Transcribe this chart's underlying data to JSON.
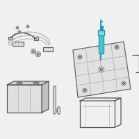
{
  "bg": "#f0f0f0",
  "white": "#ffffff",
  "lc": "#aaaaaa",
  "dc": "#777777",
  "vdc": "#555555",
  "teal": "#4dc4cc",
  "teal_dark": "#2a9aaa",
  "teal_light": "#80d8e0",
  "fill_light": "#e0e0e0",
  "fill_mid": "#d0d0d0",
  "fill_dark": "#c0c0c0",
  "figsize": [
    2.0,
    2.0
  ],
  "dpi": 100
}
